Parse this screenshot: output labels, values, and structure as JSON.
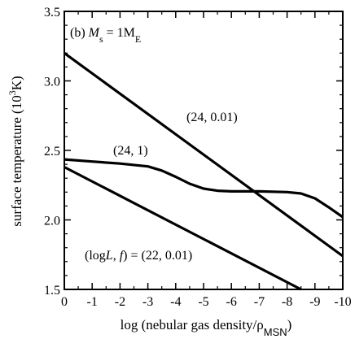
{
  "chart_data": {
    "type": "line",
    "panel_label": "(b)",
    "mass_label": {
      "symbol": "M",
      "symbol_sub": "s",
      "equals": " = 1M",
      "unit_sub": "E"
    },
    "xlabel": {
      "text": "log (nebular gas density/",
      "greek": "ρ",
      "sub": "MSN",
      "close": ")"
    },
    "ylabel": {
      "text": "surface temperature (10",
      "sup": "3",
      "close": "K)"
    },
    "xlim": [
      0,
      -10
    ],
    "ylim": [
      1.5,
      3.5
    ],
    "x_ticks": [
      "0",
      "-1",
      "-2",
      "-3",
      "-4",
      "-5",
      "-6",
      "-7",
      "-8",
      "-9",
      "-10"
    ],
    "y_ticks": [
      "1.5",
      "2.0",
      "2.5",
      "3.0",
      "3.5"
    ],
    "grid": false,
    "series": [
      {
        "name": "(24, 0.01)",
        "points": [
          [
            0,
            3.2
          ],
          [
            -10,
            1.74
          ]
        ]
      },
      {
        "name": "(24, 1)",
        "points": [
          [
            0,
            2.435
          ],
          [
            -1,
            2.42
          ],
          [
            -2,
            2.405
          ],
          [
            -3,
            2.385
          ],
          [
            -3.5,
            2.355
          ],
          [
            -4,
            2.31
          ],
          [
            -4.5,
            2.26
          ],
          [
            -5,
            2.225
          ],
          [
            -5.5,
            2.21
          ],
          [
            -6,
            2.205
          ],
          [
            -7,
            2.205
          ],
          [
            -8,
            2.2
          ],
          [
            -8.5,
            2.19
          ],
          [
            -9,
            2.155
          ],
          [
            -9.5,
            2.09
          ],
          [
            -10,
            2.02
          ]
        ]
      },
      {
        "name": "(logL, f) = (22, 0.01)",
        "points": [
          [
            0,
            2.38
          ],
          [
            -8.5,
            1.5
          ]
        ]
      }
    ],
    "annotations": {
      "a1": {
        "text": "(24, 0.01)"
      },
      "a2": {
        "text": "(24, 1)"
      },
      "a3": {
        "prefix": "(log",
        "italic": "L",
        "mid": ", ",
        "italic2": "f",
        "suffix": ") = (22, 0.01)"
      }
    }
  }
}
